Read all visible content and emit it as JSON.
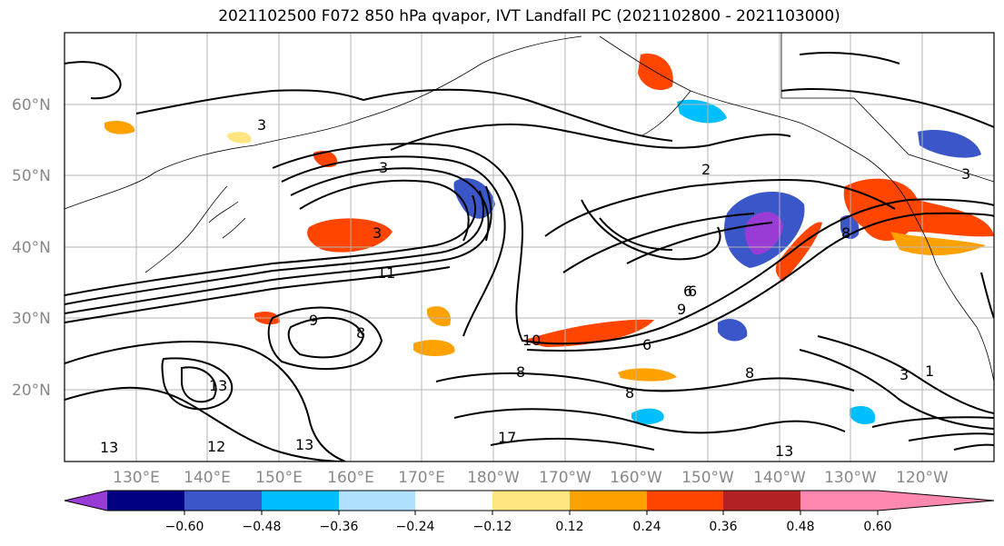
{
  "title": "2021102500 F072 850 hPa qvapor, IVT Landfall PC (2021102800 - 2021103000)",
  "lat_labels": [
    "60°N",
    "50°N",
    "40°N",
    "30°N",
    "20°N"
  ],
  "lon_labels": [
    "130°E",
    "140°E",
    "150°E",
    "160°E",
    "170°E",
    "180°W",
    "170°W",
    "160°W",
    "150°W",
    "140°W",
    "130°W",
    "120°W"
  ],
  "colorbar": {
    "colors": [
      "#9b3bd6",
      "#000080",
      "#3a56c8",
      "#00bfff",
      "#b0e0ff",
      "#ffffff",
      "#ffe680",
      "#ffa200",
      "#ff4500",
      "#b22222",
      "#ff88b0"
    ],
    "tick_labels": [
      "−0.60",
      "−0.48",
      "−0.36",
      "−0.24",
      "−0.12",
      "0.12",
      "0.24",
      "0.36",
      "0.48",
      "0.60"
    ]
  },
  "contour_labels": [
    "3",
    "3",
    "3",
    "2",
    "3",
    "13",
    "9",
    "8",
    "8",
    "8",
    "10",
    "11",
    "6",
    "6",
    "9",
    "8",
    "13",
    "13",
    "12",
    "17",
    "13",
    "8",
    "6",
    "3",
    "1"
  ]
}
